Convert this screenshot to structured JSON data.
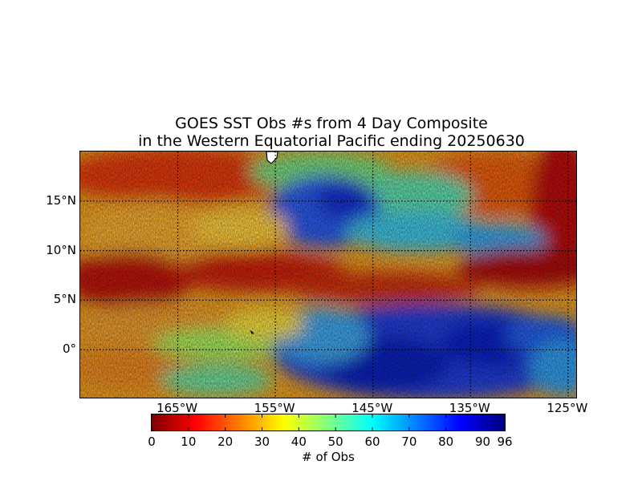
{
  "title_line1": "GOES SST Obs #s from 4 Day Composite",
  "title_line2": "in the Western Equatorial Pacific ending 20250630",
  "map": {
    "lon_range": [
      -175,
      -124
    ],
    "lat_range": [
      -5,
      20
    ],
    "lat_labels": [
      {
        "lat": 15,
        "text": "15°N"
      },
      {
        "lat": 10,
        "text": "10°N"
      },
      {
        "lat": 5,
        "text": "5°N"
      },
      {
        "lat": 0,
        "text": "0°"
      }
    ],
    "lon_labels": [
      {
        "lon": -165,
        "text": "165°W"
      },
      {
        "lon": -155,
        "text": "155°W"
      },
      {
        "lon": -145,
        "text": "145°W"
      },
      {
        "lon": -135,
        "text": "135°W"
      },
      {
        "lon": -125,
        "text": "125°W"
      }
    ],
    "gridlines": "dotted black"
  },
  "colorbar": {
    "min": 0,
    "max": 96,
    "ticks": [
      {
        "value": 0,
        "text": "0"
      },
      {
        "value": 10,
        "text": "10"
      },
      {
        "value": 20,
        "text": "20"
      },
      {
        "value": 30,
        "text": "30"
      },
      {
        "value": 40,
        "text": "40"
      },
      {
        "value": 50,
        "text": "50"
      },
      {
        "value": 60,
        "text": "60"
      },
      {
        "value": 70,
        "text": "70"
      },
      {
        "value": 80,
        "text": "80"
      },
      {
        "value": 90,
        "text": "90"
      },
      {
        "value": 96,
        "text": "96"
      }
    ],
    "label": "# of Obs",
    "colormap": "jet"
  }
}
